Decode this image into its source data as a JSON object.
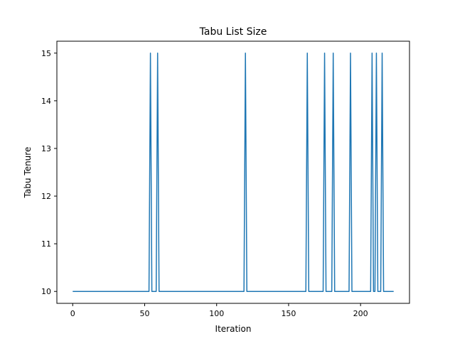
{
  "chart_data": {
    "type": "line",
    "title": "Tabu List Size",
    "xlabel": "Iteration",
    "ylabel": "Tabu Tenure",
    "xlim": [
      -11,
      234
    ],
    "ylim": [
      9.75,
      15.25
    ],
    "xticks": [
      0,
      50,
      100,
      150,
      200
    ],
    "yticks": [
      10,
      11,
      12,
      13,
      14,
      15
    ],
    "grid": false,
    "legend": "none",
    "color": "#1f77b4",
    "series": [
      {
        "x": [
          0,
          53,
          54,
          55,
          58,
          59,
          60,
          119,
          120,
          121,
          162,
          163,
          164,
          174,
          175,
          176,
          180,
          181,
          182,
          192,
          193,
          194,
          207,
          208,
          209,
          210,
          211,
          212,
          214,
          215,
          216,
          223
        ],
        "values": [
          10,
          10,
          15,
          10,
          10,
          15,
          10,
          10,
          15,
          10,
          10,
          15,
          10,
          10,
          15,
          10,
          10,
          15,
          10,
          10,
          15,
          10,
          10,
          15,
          10,
          10,
          15,
          10,
          10,
          15,
          10,
          10
        ]
      }
    ]
  }
}
